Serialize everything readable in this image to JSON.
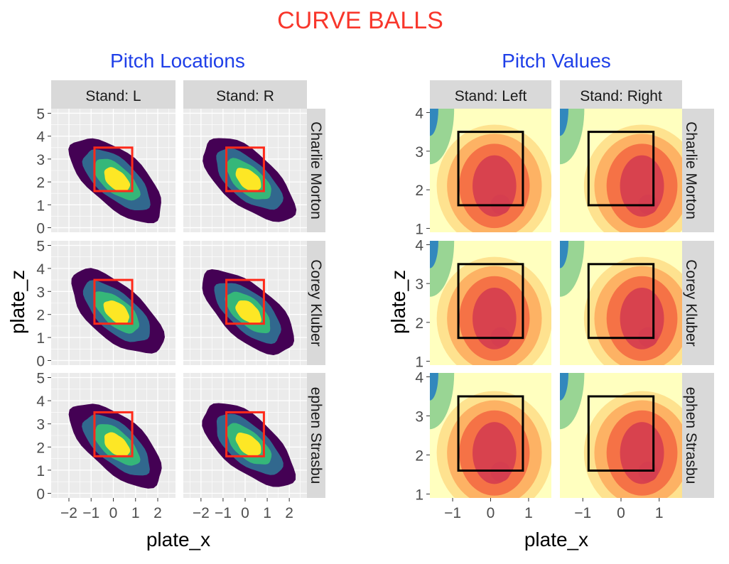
{
  "title": "CURVE BALLS",
  "colors": {
    "title": "#F8362B",
    "subtitle": "#1F3FE8",
    "panel_bg": "#EBEBEB",
    "grid": "#FFFFFF",
    "strip_bg": "#D9D9D9",
    "zone_left": "#FF2A1A",
    "zone_right": "#000000",
    "density_levels": [
      "#440154",
      "#31688E",
      "#35B779",
      "#FDE725"
    ],
    "value_scale": [
      "#3288BD",
      "#99D594",
      "#E6F598",
      "#FFFFBF",
      "#FEE08B",
      "#FDAE61",
      "#F46D43",
      "#D53E4F"
    ]
  },
  "chart_data": [
    {
      "type": "heatmap",
      "subtitle": "Pitch Locations",
      "xlabel": "plate_x",
      "ylabel": "plate_z",
      "xlim": [
        -2.8,
        2.8
      ],
      "ylim": [
        -0.2,
        5.2
      ],
      "xticks": [
        "-2",
        "-1",
        "0",
        "1",
        "2"
      ],
      "yticks": [
        "0",
        "1",
        "2",
        "3",
        "4",
        "5"
      ],
      "col_strips": [
        "Stand: L",
        "Stand: R"
      ],
      "row_strips": [
        "Charlie Morton",
        "Corey Kluber",
        "ephen Strasbu"
      ],
      "strike_zone": {
        "x": [
          -0.85,
          0.85
        ],
        "z": [
          1.6,
          3.5
        ]
      },
      "grid": true
    },
    {
      "type": "heatmap",
      "subtitle": "Pitch Values",
      "xlabel": "plate_x",
      "ylabel": "plate_z",
      "xlim": [
        -1.6,
        1.6
      ],
      "ylim": [
        0.9,
        4.1
      ],
      "xticks": [
        "-1",
        "0",
        "1"
      ],
      "yticks": [
        "1",
        "2",
        "3",
        "4"
      ],
      "col_strips": [
        "Stand: Left",
        "Stand: Right"
      ],
      "row_strips": [
        "Charlie Morton",
        "Corey Kluber",
        "ephen Strasbu"
      ],
      "strike_zone": {
        "x": [
          -0.85,
          0.85
        ],
        "z": [
          1.6,
          3.5
        ]
      }
    }
  ]
}
